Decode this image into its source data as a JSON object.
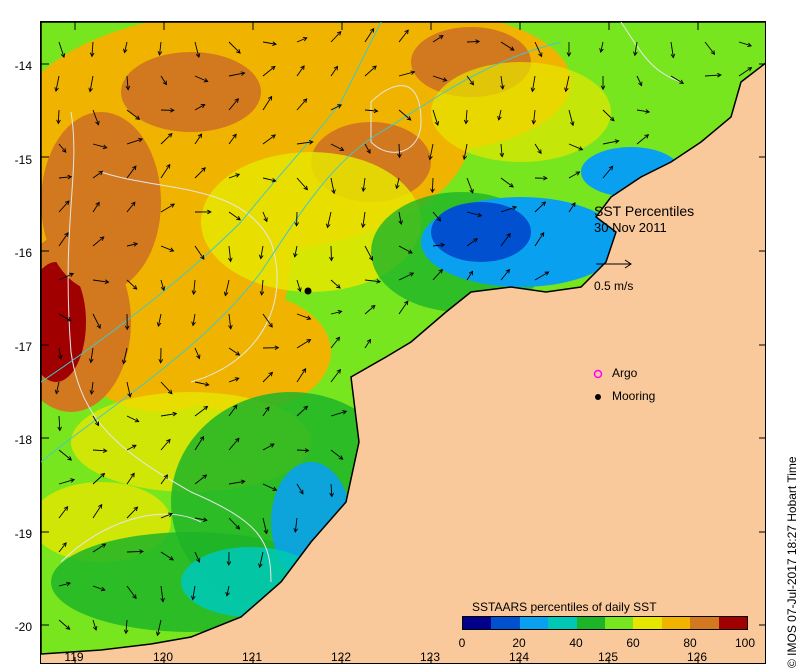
{
  "title": "SST Percentiles",
  "date": "30 Nov 2011",
  "arrow_label": "0.5 m/s",
  "legend": {
    "argo": "Argo",
    "mooring": "Mooring"
  },
  "colorbar": {
    "title": "SSTAARS percentiles of daily SST",
    "labels": [
      "0",
      "20",
      "40",
      "60",
      "80",
      "100"
    ],
    "colors": [
      "#00008b",
      "#0050d0",
      "#0aa0f0",
      "#00c8b4",
      "#1eb428",
      "#78e61e",
      "#e6e600",
      "#f0b400",
      "#d2781e",
      "#a00000"
    ]
  },
  "credit": "© IMOS 07-Jul-2017 18:27 Hobart Time",
  "y_axis": {
    "labels": [
      "-14",
      "-15",
      "-16",
      "-17",
      "-18",
      "-19",
      "-20"
    ]
  },
  "x_axis": {
    "labels": [
      "119",
      "120",
      "121",
      "122",
      "123",
      "124",
      "125",
      "126"
    ]
  },
  "colors": {
    "land": "#f9c99b",
    "coast": "#000000",
    "contour": "#e6e6e6",
    "isobath": "#40c8c8",
    "argo": "#ff00ff",
    "mooring": "#000000"
  }
}
